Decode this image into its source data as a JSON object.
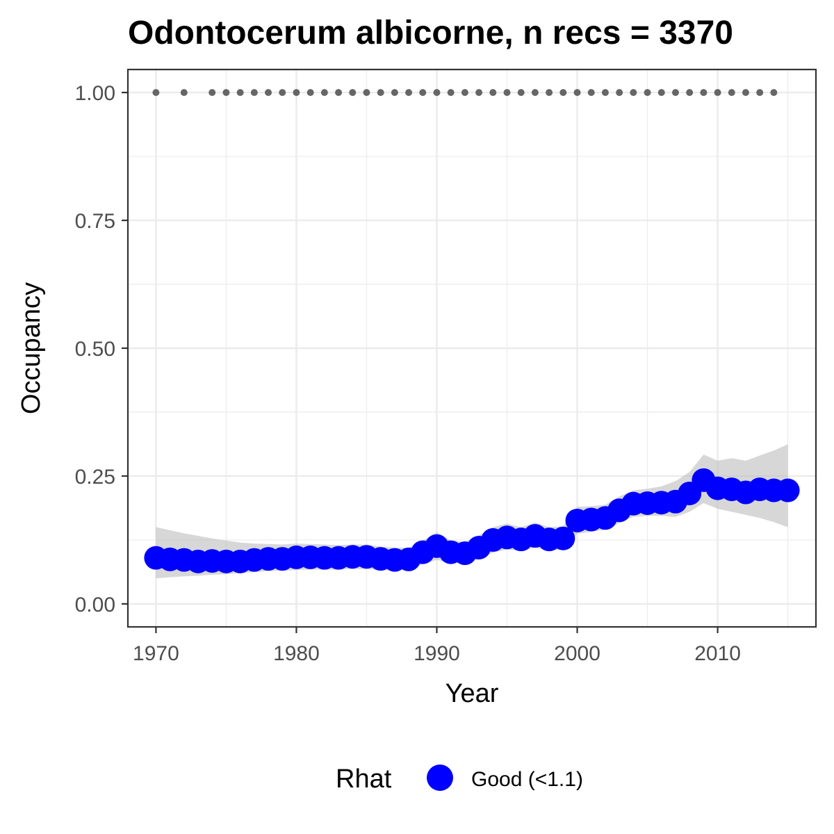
{
  "chart_data": {
    "type": "line",
    "title": "Odontocerum albicorne, n recs = 3370",
    "xlabel": "Year",
    "ylabel": "Occupancy",
    "xlim": [
      1968,
      2017
    ],
    "ylim": [
      -0.045,
      1.045
    ],
    "x_ticks": [
      1970,
      1980,
      1990,
      2000,
      2010
    ],
    "y_ticks": [
      0.0,
      0.25,
      0.5,
      0.75,
      1.0
    ],
    "y_tick_labels": [
      "0.00",
      "0.25",
      "0.50",
      "0.75",
      "1.00"
    ],
    "x_tick_labels": [
      "1970",
      "1980",
      "1990",
      "2000",
      "2010"
    ],
    "grid": true,
    "colors": {
      "point": "#0000ff",
      "ribbon": "#bdbdbd",
      "record_dots": "#666666",
      "grid": "#ebebeb",
      "panel_border": "#333333"
    },
    "series": [
      {
        "name": "Occupancy",
        "x": [
          1970,
          1971,
          1972,
          1973,
          1974,
          1975,
          1976,
          1977,
          1978,
          1979,
          1980,
          1981,
          1982,
          1983,
          1984,
          1985,
          1986,
          1987,
          1988,
          1989,
          1990,
          1991,
          1992,
          1993,
          1994,
          1995,
          1996,
          1997,
          1998,
          1999,
          2000,
          2001,
          2002,
          2003,
          2004,
          2005,
          2006,
          2007,
          2008,
          2009,
          2010,
          2011,
          2012,
          2013,
          2014,
          2015
        ],
        "y": [
          0.09,
          0.087,
          0.086,
          0.083,
          0.084,
          0.083,
          0.083,
          0.086,
          0.088,
          0.088,
          0.091,
          0.091,
          0.09,
          0.09,
          0.092,
          0.092,
          0.088,
          0.086,
          0.087,
          0.101,
          0.113,
          0.101,
          0.099,
          0.11,
          0.125,
          0.13,
          0.126,
          0.133,
          0.126,
          0.128,
          0.163,
          0.165,
          0.168,
          0.183,
          0.196,
          0.197,
          0.198,
          0.2,
          0.216,
          0.242,
          0.226,
          0.224,
          0.218,
          0.224,
          0.222,
          0.222
        ],
        "lower": [
          0.05,
          0.052,
          0.054,
          0.055,
          0.057,
          0.058,
          0.06,
          0.062,
          0.064,
          0.065,
          0.066,
          0.067,
          0.067,
          0.067,
          0.068,
          0.068,
          0.066,
          0.065,
          0.066,
          0.078,
          0.086,
          0.08,
          0.079,
          0.088,
          0.1,
          0.106,
          0.104,
          0.11,
          0.105,
          0.106,
          0.137,
          0.141,
          0.145,
          0.158,
          0.17,
          0.172,
          0.172,
          0.17,
          0.18,
          0.197,
          0.186,
          0.18,
          0.174,
          0.168,
          0.16,
          0.15
        ],
        "upper": [
          0.15,
          0.144,
          0.138,
          0.133,
          0.128,
          0.124,
          0.12,
          0.118,
          0.117,
          0.116,
          0.118,
          0.117,
          0.116,
          0.115,
          0.116,
          0.116,
          0.112,
          0.11,
          0.11,
          0.124,
          0.14,
          0.124,
          0.121,
          0.134,
          0.15,
          0.157,
          0.15,
          0.159,
          0.15,
          0.152,
          0.19,
          0.191,
          0.194,
          0.21,
          0.222,
          0.225,
          0.23,
          0.24,
          0.258,
          0.292,
          0.28,
          0.285,
          0.28,
          0.29,
          0.3,
          0.312
        ]
      }
    ],
    "record_years": [
      1970,
      1972,
      1974,
      1975,
      1976,
      1977,
      1978,
      1979,
      1980,
      1981,
      1982,
      1983,
      1984,
      1985,
      1986,
      1987,
      1988,
      1989,
      1990,
      1991,
      1992,
      1993,
      1994,
      1995,
      1996,
      1997,
      1998,
      1999,
      2000,
      2001,
      2002,
      2003,
      2004,
      2005,
      2006,
      2007,
      2008,
      2009,
      2010,
      2011,
      2012,
      2013,
      2014
    ],
    "record_value": 1.0,
    "legend": {
      "title": "Rhat",
      "label": "Good (<1.1)",
      "position": "bottom"
    }
  }
}
